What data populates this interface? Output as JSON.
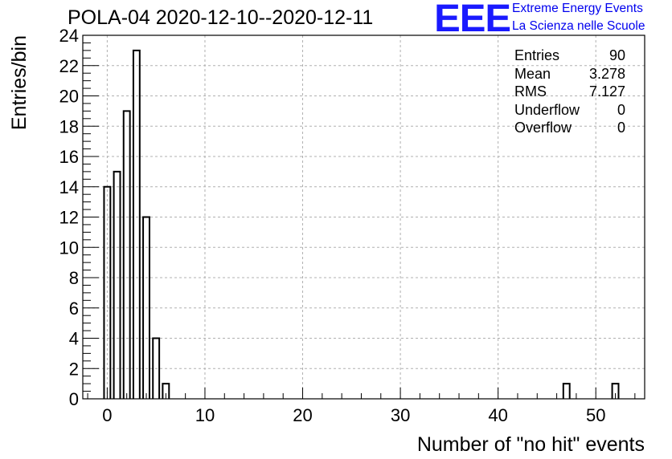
{
  "chart_data": {
    "type": "histogram",
    "title": "POLA-04 2020-12-10--2020-12-11",
    "xlabel": "Number of \"no hit\" events",
    "ylabel": "Entries/bin",
    "xlim": [
      -2.5,
      55
    ],
    "ylim": [
      0,
      24
    ],
    "x_ticks": [
      0,
      10,
      20,
      30,
      40,
      50
    ],
    "y_ticks": [
      0,
      2,
      4,
      6,
      8,
      10,
      12,
      14,
      16,
      18,
      20,
      22,
      24
    ],
    "grid": true,
    "bin_width": 0.65,
    "bins": [
      {
        "center": 0,
        "value": 14
      },
      {
        "center": 1,
        "value": 15
      },
      {
        "center": 2,
        "value": 19
      },
      {
        "center": 3,
        "value": 23
      },
      {
        "center": 4,
        "value": 12
      },
      {
        "center": 5,
        "value": 4
      },
      {
        "center": 6,
        "value": 1
      },
      {
        "center": 47,
        "value": 1
      },
      {
        "center": 52,
        "value": 1
      }
    ],
    "stats": [
      {
        "label": "Entries",
        "value": "90"
      },
      {
        "label": "Mean",
        "value": "3.278"
      },
      {
        "label": "RMS",
        "value": "7.127"
      },
      {
        "label": "Underflow",
        "value": "0"
      },
      {
        "label": "Overflow",
        "value": "0"
      }
    ]
  },
  "logo": {
    "mark": "EEE",
    "line1": "Extreme Energy Events",
    "line2": "La Scienza nelle Scuole"
  }
}
